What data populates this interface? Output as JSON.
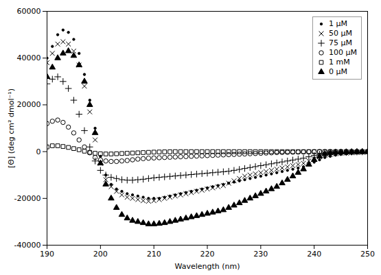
{
  "chart_data": {
    "type": "scatter",
    "xlabel": "Wavelength (nm)",
    "ylabel": "[Θ] (deg cm² dmol⁻¹)",
    "xlim": [
      190,
      250
    ],
    "ylim": [
      -40000,
      60000
    ],
    "xticks": [
      190,
      200,
      210,
      220,
      230,
      240,
      250
    ],
    "yticks": [
      -40000,
      -20000,
      0,
      20000,
      40000,
      60000
    ],
    "grid": false,
    "legend": "upper right",
    "x": [
      190,
      191,
      192,
      193,
      194,
      195,
      196,
      197,
      198,
      199,
      200,
      201,
      202,
      203,
      204,
      205,
      206,
      207,
      208,
      209,
      210,
      211,
      212,
      213,
      214,
      215,
      216,
      217,
      218,
      219,
      220,
      221,
      222,
      223,
      224,
      225,
      226,
      227,
      228,
      229,
      230,
      231,
      232,
      233,
      234,
      235,
      236,
      237,
      238,
      239,
      240,
      241,
      242,
      243,
      244,
      245,
      246,
      247,
      248,
      249,
      250
    ],
    "series": [
      {
        "name": "1 μM",
        "color": "black",
        "marker": "point",
        "values": [
          40000,
          45000,
          50000,
          52000,
          51000,
          48000,
          42000,
          33000,
          22000,
          10000,
          -2000,
          -10000,
          -14000,
          -16000,
          -17000,
          -18000,
          -18500,
          -19000,
          -19500,
          -20000,
          -20000,
          -20000,
          -19500,
          -19000,
          -18500,
          -18000,
          -17500,
          -17000,
          -16500,
          -16000,
          -15500,
          -15000,
          -14500,
          -14000,
          -13500,
          -13000,
          -12500,
          -12000,
          -11500,
          -11000,
          -10500,
          -10000,
          -9500,
          -9000,
          -8500,
          -8000,
          -7500,
          -7000,
          -6500,
          -5500,
          -4500,
          -3500,
          -2500,
          -2000,
          -1500,
          -1200,
          -1000,
          -800,
          -600,
          -400,
          -200
        ]
      },
      {
        "name": "50 μM",
        "color": "black",
        "marker": "x",
        "values": [
          38000,
          42000,
          46000,
          47000,
          46000,
          43000,
          37000,
          28000,
          17000,
          5000,
          -5000,
          -12000,
          -15000,
          -17000,
          -18500,
          -19500,
          -20000,
          -20500,
          -21000,
          -21200,
          -21000,
          -20500,
          -20000,
          -19500,
          -19000,
          -18500,
          -18000,
          -17500,
          -17000,
          -16500,
          -16000,
          -15500,
          -15000,
          -14500,
          -13500,
          -12500,
          -11500,
          -10500,
          -10000,
          -9500,
          -9000,
          -8500,
          -8000,
          -7500,
          -7000,
          -6500,
          -6000,
          -5500,
          -5000,
          -4000,
          -3000,
          -2200,
          -1500,
          -1200,
          -900,
          -700,
          -600,
          -500,
          -400,
          -300,
          -200
        ]
      },
      {
        "name": "75 μM",
        "color": "black",
        "marker": "plus",
        "values": [
          29000,
          31000,
          32000,
          30000,
          27000,
          22000,
          16000,
          9000,
          2000,
          -4000,
          -8000,
          -10000,
          -11000,
          -11500,
          -12000,
          -12200,
          -12200,
          -12000,
          -11800,
          -11500,
          -11200,
          -11000,
          -10800,
          -10600,
          -10400,
          -10200,
          -10000,
          -9800,
          -9600,
          -9400,
          -9200,
          -9000,
          -8800,
          -8600,
          -8400,
          -8000,
          -7600,
          -7200,
          -6800,
          -6400,
          -6000,
          -5600,
          -5200,
          -4800,
          -4400,
          -4000,
          -3600,
          -3200,
          -2800,
          -2200,
          -1600,
          -1100,
          -700,
          -500,
          -400,
          -300,
          -250,
          -200,
          -150,
          -100,
          -50
        ]
      },
      {
        "name": "100 μM",
        "color": "black",
        "marker": "circle",
        "values": [
          12000,
          13000,
          13500,
          12500,
          10500,
          8000,
          5000,
          2000,
          -500,
          -2500,
          -3500,
          -4000,
          -4200,
          -4200,
          -4000,
          -3800,
          -3500,
          -3200,
          -3000,
          -2800,
          -2700,
          -2600,
          -2500,
          -2400,
          -2300,
          -2200,
          -2100,
          -2000,
          -1900,
          -1800,
          -1700,
          -1600,
          -1500,
          -1400,
          -1300,
          -1200,
          -1100,
          -1000,
          -900,
          -800,
          -700,
          -600,
          -500,
          -400,
          -350,
          -300,
          -250,
          -200,
          -150,
          -100,
          -50,
          0,
          0,
          0,
          0,
          0,
          0,
          0,
          0,
          0,
          0
        ]
      },
      {
        "name": "1 mM",
        "color": "black",
        "marker": "square",
        "values": [
          2000,
          2500,
          2500,
          2200,
          1800,
          1300,
          800,
          200,
          -300,
          -700,
          -900,
          -1000,
          -1000,
          -900,
          -800,
          -700,
          -600,
          -500,
          -400,
          -300,
          -200,
          -150,
          -100,
          -50,
          0,
          0,
          0,
          0,
          0,
          0,
          0,
          0,
          0,
          0,
          0,
          0,
          0,
          0,
          0,
          0,
          0,
          0,
          0,
          0,
          0,
          0,
          0,
          0,
          0,
          0,
          0,
          0,
          0,
          0,
          0,
          0,
          0,
          0,
          0,
          0,
          0
        ]
      },
      {
        "name": "0 μM",
        "color": "black",
        "marker": "triangle",
        "values": [
          32000,
          36000,
          40000,
          42000,
          43000,
          41000,
          37000,
          30000,
          20000,
          8000,
          -5000,
          -14000,
          -20000,
          -24000,
          -27000,
          -28500,
          -29500,
          -30000,
          -30500,
          -31000,
          -31000,
          -30800,
          -30500,
          -30000,
          -29500,
          -29000,
          -28500,
          -28000,
          -27500,
          -27000,
          -26500,
          -26000,
          -25500,
          -25000,
          -24000,
          -23000,
          -22000,
          -21000,
          -20000,
          -19000,
          -18000,
          -17000,
          -16000,
          -15000,
          -13500,
          -12000,
          -10500,
          -9000,
          -7500,
          -5500,
          -3500,
          -2000,
          -1000,
          -600,
          -400,
          -300,
          -200,
          -150,
          -100,
          -80,
          -50
        ]
      }
    ]
  }
}
